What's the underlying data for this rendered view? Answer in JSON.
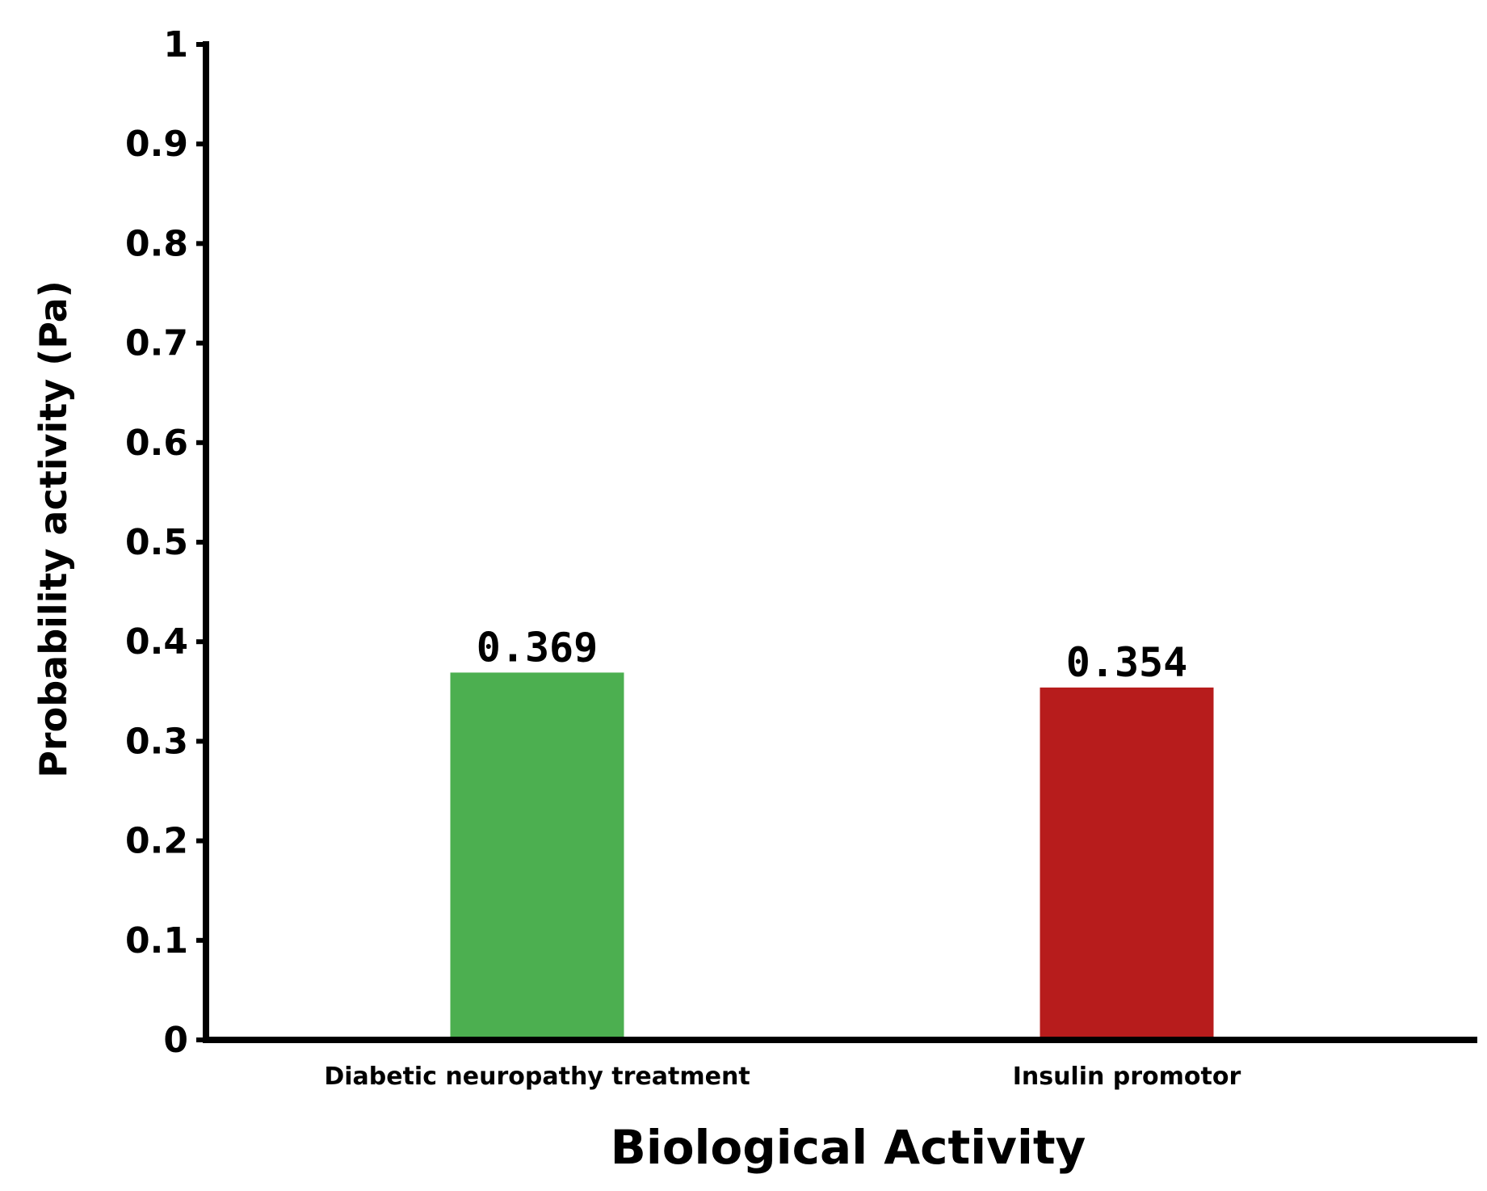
{
  "chart_data": {
    "type": "bar",
    "title": "",
    "xlabel": "Biological Activity",
    "ylabel": "Probability activity (Pa)",
    "categories": [
      "Diabetic neuropathy treatment",
      "Insulin promotor"
    ],
    "values": [
      0.369,
      0.354
    ],
    "value_labels": [
      "0.369",
      "0.354"
    ],
    "colors": [
      "#4caf50",
      "#b71c1c"
    ],
    "ylim": [
      0,
      1
    ],
    "yticks": [
      0,
      0.1,
      0.2,
      0.3,
      0.4,
      0.5,
      0.6,
      0.7,
      0.8,
      0.9,
      1
    ],
    "ytick_labels": [
      "0",
      "0.1",
      "0.2",
      "0.3",
      "0.4",
      "0.5",
      "0.6",
      "0.7",
      "0.8",
      "0.9",
      "1"
    ],
    "grid": false,
    "legend": "none"
  }
}
